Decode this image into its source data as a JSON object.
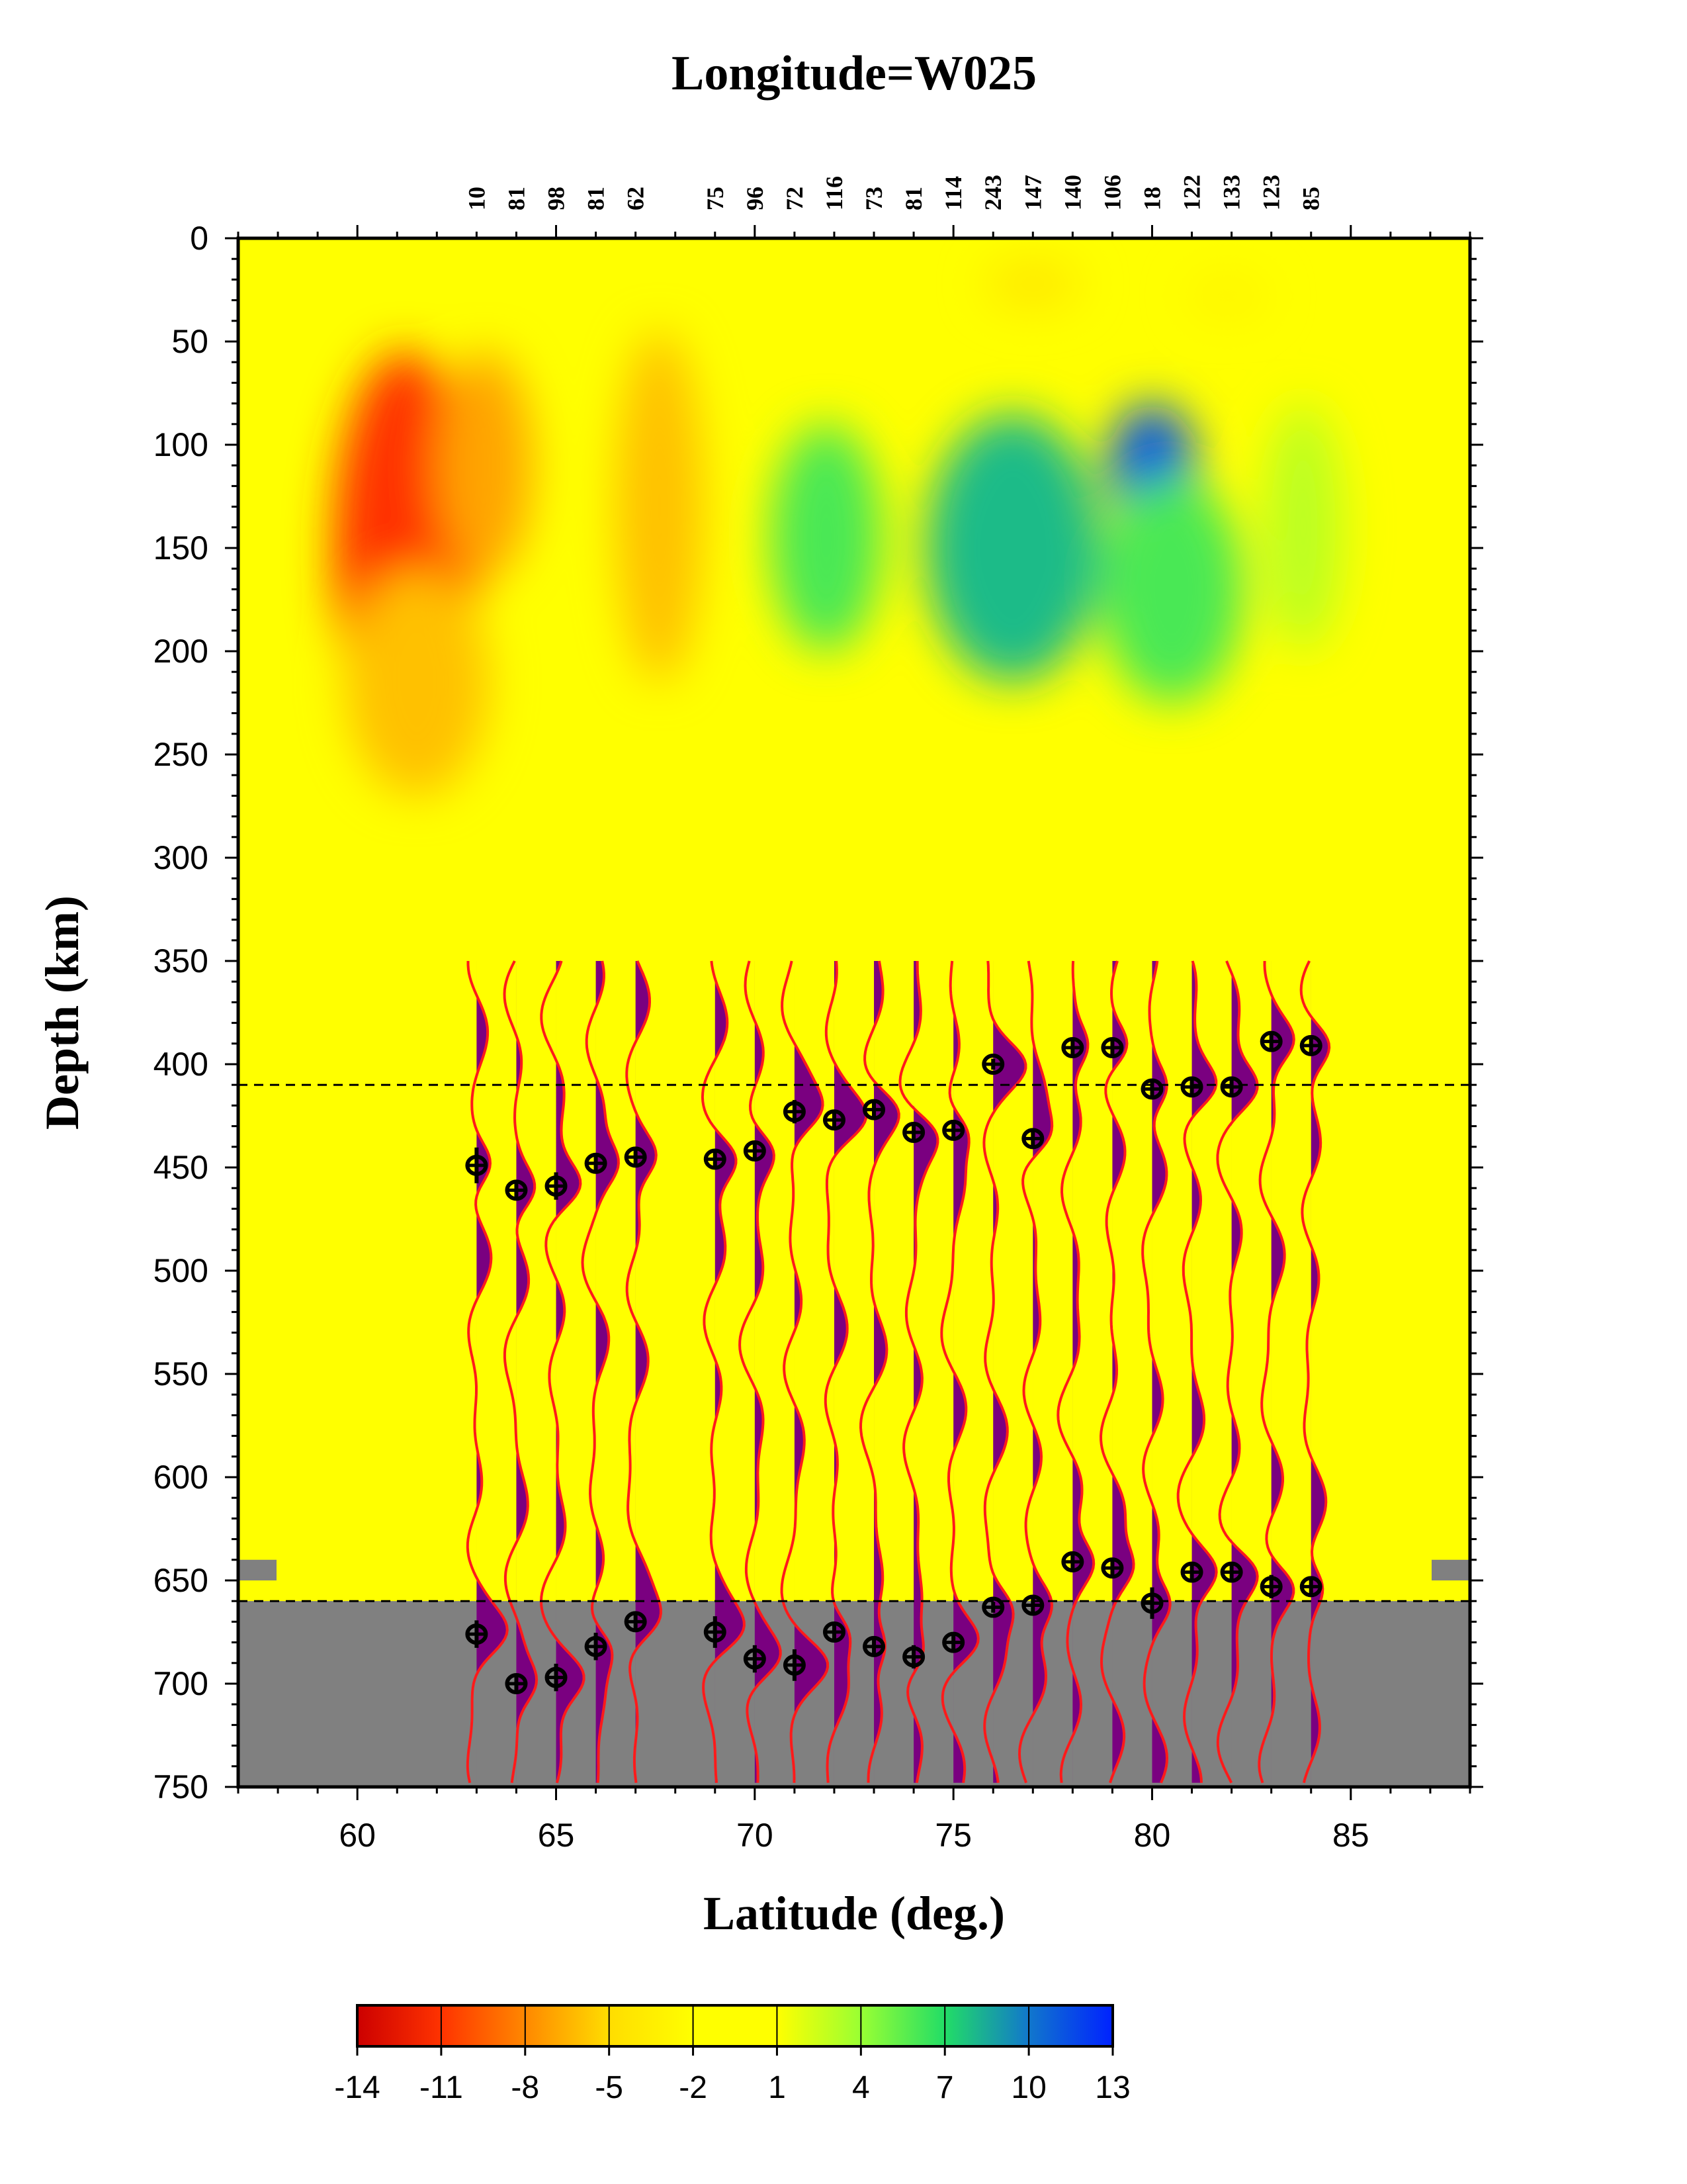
{
  "chart_data": {
    "type": "heatmap",
    "title": "Longitude=W025",
    "xlabel": "Latitude (deg.)",
    "ylabel": "Depth (km)",
    "xlim": [
      57,
      88
    ],
    "ylim": [
      0,
      750
    ],
    "y_inverted": true,
    "xticks": [
      60,
      65,
      70,
      75,
      80,
      85
    ],
    "yticks": [
      0,
      50,
      100,
      150,
      200,
      250,
      300,
      350,
      400,
      450,
      500,
      550,
      600,
      650,
      700,
      750
    ],
    "reference_depths": [
      410,
      660
    ],
    "colorbar": {
      "ticks": [
        -14,
        -11,
        -8,
        -5,
        -2,
        1,
        4,
        7,
        10,
        13
      ],
      "range": [
        -14,
        13
      ],
      "colors": [
        "#cc0000",
        "#ff3300",
        "#ff8800",
        "#ffdd00",
        "#ffff00",
        "#ffff00",
        "#99ff33",
        "#22dd66",
        "#1177cc",
        "#0022ff"
      ]
    },
    "anomalies": [
      {
        "lat": 61.2,
        "depth": 150,
        "value": -11,
        "wx": 1.8,
        "wy": 95
      },
      {
        "lat": 61.5,
        "depth": 215,
        "value": -6,
        "wx": 1.8,
        "wy": 55
      },
      {
        "lat": 63.2,
        "depth": 110,
        "value": -7,
        "wx": 1.2,
        "wy": 55
      },
      {
        "lat": 67.6,
        "depth": 130,
        "value": -6,
        "wx": 1.1,
        "wy": 85
      },
      {
        "lat": 77.0,
        "depth": 22,
        "value": -4,
        "wx": 1.2,
        "wy": 12
      },
      {
        "lat": 81.9,
        "depth": 28,
        "value": -3,
        "wx": 1.0,
        "wy": 10
      },
      {
        "lat": 71.8,
        "depth": 145,
        "value": 6,
        "wx": 1.4,
        "wy": 55
      },
      {
        "lat": 76.5,
        "depth": 150,
        "value": 8,
        "wx": 2.2,
        "wy": 65
      },
      {
        "lat": 80.0,
        "depth": 110,
        "value": 11,
        "wx": 1.1,
        "wy": 30
      },
      {
        "lat": 80.5,
        "depth": 170,
        "value": 6,
        "wx": 1.8,
        "wy": 55
      },
      {
        "lat": 83.8,
        "depth": 140,
        "value": 3,
        "wx": 1.0,
        "wy": 60
      }
    ],
    "stations": [
      {
        "lat": 63,
        "count": "10",
        "d410": 449,
        "d660": 676,
        "e410": 8,
        "e660": 6
      },
      {
        "lat": 64,
        "count": "81",
        "d410": 461,
        "d660": 700,
        "e410": 3,
        "e660": 3
      },
      {
        "lat": 65,
        "count": "98",
        "d410": 459,
        "d660": 697,
        "e410": 6,
        "e660": 6
      },
      {
        "lat": 66,
        "count": "81",
        "d410": 448,
        "d660": 682,
        "e410": 3,
        "e660": 6
      },
      {
        "lat": 67,
        "count": "62",
        "d410": 445,
        "d660": 670,
        "e410": 4,
        "e660": 4
      },
      {
        "lat": 69,
        "count": "75",
        "d410": 446,
        "d660": 675,
        "e410": 3,
        "e660": 7
      },
      {
        "lat": 70,
        "count": "96",
        "d410": 442,
        "d660": 688,
        "e410": 3,
        "e660": 6
      },
      {
        "lat": 71,
        "count": "72",
        "d410": 423,
        "d660": 691,
        "e410": 5,
        "e660": 7
      },
      {
        "lat": 72,
        "count": "116",
        "d410": 427,
        "d660": 675,
        "e410": 4,
        "e660": 3
      },
      {
        "lat": 73,
        "count": "73",
        "d410": 422,
        "d660": 682,
        "e410": 3,
        "e660": 3
      },
      {
        "lat": 74,
        "count": "81",
        "d410": 433,
        "d660": 687,
        "e410": 3,
        "e660": 5
      },
      {
        "lat": 75,
        "count": "114",
        "d410": 432,
        "d660": 680,
        "e410": 3,
        "e660": 4
      },
      {
        "lat": 76,
        "count": "243",
        "d410": 400,
        "d660": 663,
        "e410": 2,
        "e660": 2
      },
      {
        "lat": 77,
        "count": "147",
        "d410": 436,
        "d660": 662,
        "e410": 3,
        "e660": 3
      },
      {
        "lat": 78,
        "count": "140",
        "d410": 392,
        "d660": 641,
        "e410": 3,
        "e660": 3
      },
      {
        "lat": 79,
        "count": "106",
        "d410": 392,
        "d660": 644,
        "e410": 3,
        "e660": 4
      },
      {
        "lat": 80,
        "count": "18",
        "d410": 412,
        "d660": 661,
        "e410": 3,
        "e660": 7
      },
      {
        "lat": 81,
        "count": "122",
        "d410": 411,
        "d660": 646,
        "e410": 3,
        "e660": 3
      },
      {
        "lat": 82,
        "count": "133",
        "d410": 411,
        "d660": 646,
        "e410": 3,
        "e660": 3
      },
      {
        "lat": 83,
        "count": "123",
        "d410": 389,
        "d660": 653,
        "e410": 3,
        "e660": 5
      },
      {
        "lat": 84,
        "count": "85",
        "d410": 391,
        "d660": 653,
        "e410": 3,
        "e660": 4
      }
    ]
  }
}
